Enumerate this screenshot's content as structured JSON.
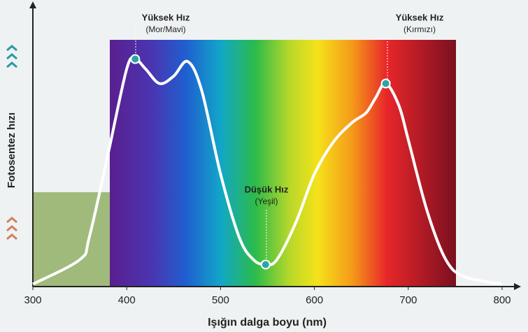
{
  "chart_data": {
    "type": "line",
    "x_label": "Işığın dalga boyu (nm)",
    "y_label": "Fotosentez hızı",
    "x": [
      300,
      350,
      360,
      380,
      400,
      409,
      420,
      435,
      450,
      465,
      480,
      500,
      520,
      535,
      548,
      560,
      580,
      600,
      620,
      640,
      655,
      665,
      676,
      690,
      700,
      720,
      740,
      760,
      800
    ],
    "series": [
      {
        "name": "Fotosentez hızı",
        "color": "#ffffff",
        "values": [
          1,
          11,
          20,
          54,
          89,
          93,
          89,
          83,
          86,
          92,
          80,
          46,
          20,
          11,
          9,
          11,
          26,
          46,
          59,
          67,
          71,
          77,
          83,
          74,
          60,
          31,
          11,
          4,
          1
        ]
      }
    ],
    "xlim": [
      300,
      800
    ],
    "xticks": [
      300,
      400,
      500,
      600,
      700,
      800
    ],
    "ylim": [
      0,
      100
    ],
    "annotations": [
      {
        "title": "Yüksek Hız",
        "subtitle": "(Mor/Mavi)"
      },
      {
        "title": "Düşük Hız",
        "subtitle": "(Yeşil)"
      },
      {
        "title": "Yüksek Hız",
        "subtitle": "(Kırmızı)"
      }
    ]
  }
}
